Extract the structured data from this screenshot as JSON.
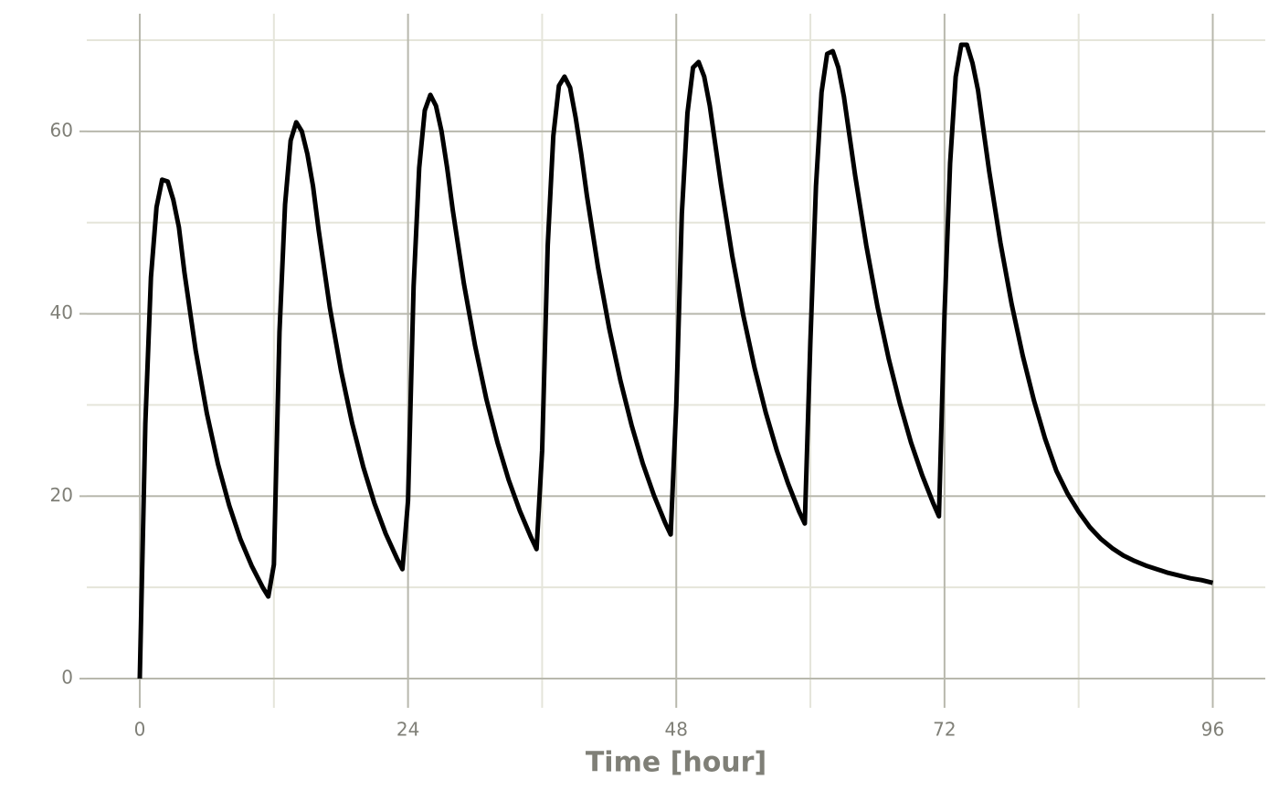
{
  "chart_data": {
    "type": "line",
    "x_label": "Time [hour]",
    "x": [
      0,
      0.5,
      1,
      1.5,
      2,
      2.5,
      3,
      3.5,
      4,
      5,
      6,
      7,
      8,
      9,
      10,
      11,
      11.5,
      12,
      12.5,
      13,
      13.5,
      14,
      14.5,
      15,
      15.5,
      16,
      17,
      18,
      19,
      20,
      21,
      22,
      23,
      23.5,
      24,
      24.5,
      25,
      25.5,
      26,
      26.5,
      27,
      27.5,
      28,
      29,
      30,
      31,
      32,
      33,
      34,
      35,
      35.5,
      36,
      36.5,
      37,
      37.5,
      38,
      38.5,
      39,
      39.5,
      40,
      41,
      42,
      43,
      44,
      45,
      46,
      47,
      47.5,
      48,
      48.5,
      49,
      49.5,
      50,
      50.5,
      51,
      51.5,
      52,
      53,
      54,
      55,
      56,
      57,
      58,
      59,
      59.5,
      60,
      60.5,
      61,
      61.5,
      62,
      62.5,
      63,
      63.5,
      64,
      65,
      66,
      67,
      68,
      69,
      70,
      71,
      71.5,
      72,
      72.5,
      73,
      73.5,
      74,
      74.5,
      75,
      75.5,
      76,
      77,
      78,
      79,
      80,
      81,
      82,
      83,
      84,
      85,
      86,
      87,
      88,
      89,
      90,
      91,
      92,
      93,
      94,
      95,
      96
    ],
    "series": [
      {
        "color": "#000000",
        "values": [
          0,
          28,
          44,
          51.7,
          54.7,
          54.5,
          52.5,
          49.5,
          44.5,
          36.0,
          29.1,
          23.5,
          19.0,
          15.3,
          12.4,
          10.0,
          9.0,
          12.5,
          38,
          52,
          59,
          61,
          60,
          57.5,
          54,
          49.2,
          40.7,
          33.8,
          28.0,
          23.2,
          19.2,
          15.9,
          13.2,
          12.0,
          19.5,
          43,
          56,
          62.3,
          64,
          62.8,
          60,
          56,
          51.4,
          43.3,
          36.5,
          30.7,
          25.9,
          21.8,
          18.4,
          15.5,
          14.2,
          25,
          47.5,
          59.5,
          65,
          66,
          64.8,
          61.5,
          57.5,
          53.0,
          45.1,
          38.4,
          32.7,
          27.8,
          23.6,
          20.1,
          17.1,
          15.8,
          30,
          51,
          62,
          67,
          67.6,
          66,
          62.8,
          58.5,
          54.2,
          46.4,
          39.8,
          34.1,
          29.2,
          25.0,
          21.4,
          18.3,
          17.0,
          37,
          54,
          64.3,
          68.5,
          68.8,
          67,
          63.8,
          59.5,
          55.2,
          47.5,
          40.8,
          35.1,
          30.2,
          25.9,
          22.3,
          19.2,
          17.8,
          40,
          56.5,
          66,
          69.5,
          69.5,
          67.5,
          64.5,
          60,
          55.6,
          47.8,
          41.1,
          35.4,
          30.5,
          26.3,
          22.8,
          20.3,
          18.3,
          16.6,
          15.3,
          14.3,
          13.5,
          12.9,
          12.4,
          12.0,
          11.6,
          11.3,
          11.0,
          10.8,
          10.5
        ]
      }
    ],
    "xlim": [
      -4.74,
      100.7
    ],
    "ylim": [
      -3.2,
      72.9
    ],
    "xticks": [
      0,
      24,
      48,
      72,
      96
    ],
    "x_minor_ticks": [
      12,
      36,
      60,
      84
    ],
    "yticks": [
      0,
      20,
      40,
      60
    ],
    "y_minor_ticks": [
      10,
      30,
      50,
      70
    ],
    "grid": true,
    "grid_color": "#b8b8ad",
    "minor_grid_color": "#e5e5da"
  }
}
